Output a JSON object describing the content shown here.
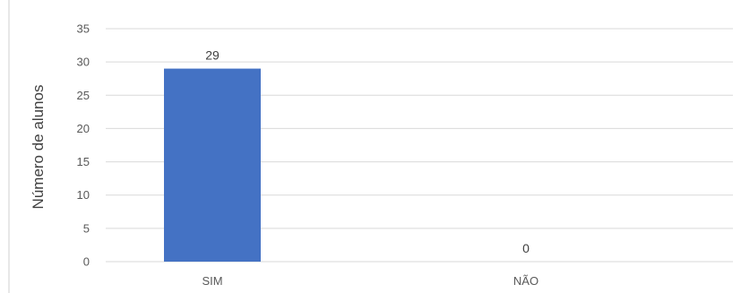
{
  "chart_data": {
    "type": "bar",
    "title": "",
    "xlabel": "",
    "ylabel": "Número de alunos",
    "categories": [
      "SIM",
      "NÃO"
    ],
    "values": [
      29,
      0
    ],
    "data_labels": [
      "29",
      "0"
    ],
    "ylim": [
      0,
      35
    ],
    "yticks": [
      0,
      5,
      10,
      15,
      20,
      25,
      30,
      35
    ],
    "grid": true,
    "legend": "none",
    "bar_color": "#4472c4",
    "grid_color": "#d9d9d9"
  }
}
